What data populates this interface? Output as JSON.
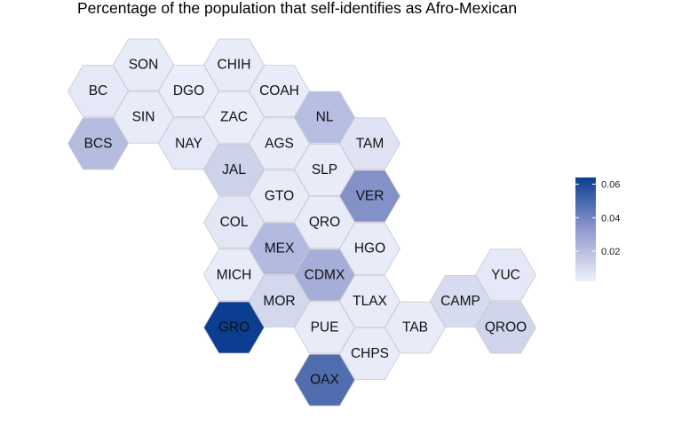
{
  "title": "Percentage of the population that self-identifies as Afro-Mexican",
  "legend": {
    "ticks": [
      "0.02",
      "0.04",
      "0.06"
    ],
    "tick_values": [
      0.02,
      0.04,
      0.06
    ],
    "range": [
      0.002,
      0.064
    ],
    "color_low": "#eef1fb",
    "color_high": "#0b3d91"
  },
  "states": [
    {
      "code": "SON",
      "value": 0.004,
      "col": 2,
      "row": 0
    },
    {
      "code": "CHIH",
      "value": 0.004,
      "col": 4,
      "row": 0
    },
    {
      "code": "BC",
      "value": 0.005,
      "col": 1,
      "row": 1
    },
    {
      "code": "DGO",
      "value": 0.003,
      "col": 3,
      "row": 1
    },
    {
      "code": "COAH",
      "value": 0.004,
      "col": 5,
      "row": 1
    },
    {
      "code": "SIN",
      "value": 0.004,
      "col": 2,
      "row": 2
    },
    {
      "code": "ZAC",
      "value": 0.003,
      "col": 4,
      "row": 2
    },
    {
      "code": "NL",
      "value": 0.02,
      "col": 6,
      "row": 2
    },
    {
      "code": "BCS",
      "value": 0.021,
      "col": 1,
      "row": 3
    },
    {
      "code": "NAY",
      "value": 0.005,
      "col": 3,
      "row": 3
    },
    {
      "code": "AGS",
      "value": 0.004,
      "col": 5,
      "row": 3
    },
    {
      "code": "TAM",
      "value": 0.007,
      "col": 7,
      "row": 3
    },
    {
      "code": "JAL",
      "value": 0.013,
      "col": 4,
      "row": 4
    },
    {
      "code": "SLP",
      "value": 0.004,
      "col": 6,
      "row": 4
    },
    {
      "code": "GTO",
      "value": 0.004,
      "col": 5,
      "row": 5
    },
    {
      "code": "VER",
      "value": 0.036,
      "col": 7,
      "row": 5
    },
    {
      "code": "COL",
      "value": 0.006,
      "col": 4,
      "row": 6
    },
    {
      "code": "QRO",
      "value": 0.004,
      "col": 6,
      "row": 6
    },
    {
      "code": "MEX",
      "value": 0.022,
      "col": 5,
      "row": 7
    },
    {
      "code": "HGO",
      "value": 0.004,
      "col": 7,
      "row": 7
    },
    {
      "code": "YUC",
      "value": 0.005,
      "col": 10,
      "row": 8
    },
    {
      "code": "MICH",
      "value": 0.004,
      "col": 4,
      "row": 8
    },
    {
      "code": "CDMX",
      "value": 0.026,
      "col": 6,
      "row": 8
    },
    {
      "code": "MOR",
      "value": 0.011,
      "col": 5,
      "row": 9
    },
    {
      "code": "TLAX",
      "value": 0.004,
      "col": 7,
      "row": 9
    },
    {
      "code": "CAMP",
      "value": 0.01,
      "col": 9,
      "row": 9
    },
    {
      "code": "GRO",
      "value": 0.064,
      "col": 4,
      "row": 10
    },
    {
      "code": "PUE",
      "value": 0.004,
      "col": 6,
      "row": 10
    },
    {
      "code": "TAB",
      "value": 0.004,
      "col": 8,
      "row": 10
    },
    {
      "code": "QROO",
      "value": 0.012,
      "col": 10,
      "row": 10
    },
    {
      "code": "CHPS",
      "value": 0.004,
      "col": 7,
      "row": 11
    },
    {
      "code": "OAX",
      "value": 0.048,
      "col": 6,
      "row": 12
    }
  ]
}
